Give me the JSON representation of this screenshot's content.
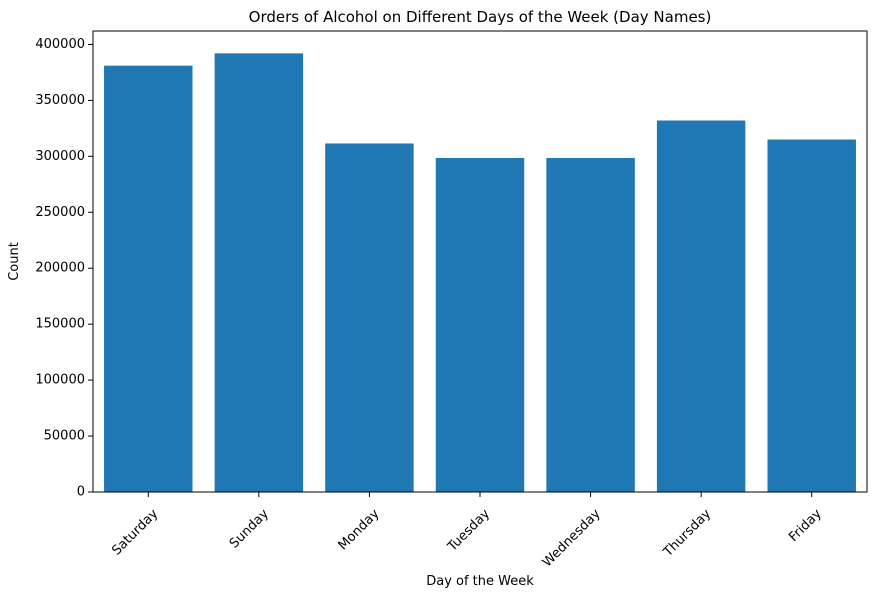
{
  "chart_data": {
    "type": "bar",
    "title": "Orders of Alcohol on Different Days of the Week (Day Names)",
    "xlabel": "Day of the Week",
    "ylabel": "Count",
    "categories": [
      "Saturday",
      "Sunday",
      "Monday",
      "Tuesday",
      "Wednesday",
      "Thursday",
      "Friday"
    ],
    "values": [
      381000,
      392000,
      311500,
      298500,
      298500,
      332000,
      315000
    ],
    "ylim": [
      0,
      412000
    ],
    "yticks": [
      0,
      50000,
      100000,
      150000,
      200000,
      250000,
      300000,
      350000,
      400000
    ],
    "bar_color": "#1f77b4",
    "grid": false,
    "legend": "none",
    "xtick_rotation_deg": 45
  }
}
